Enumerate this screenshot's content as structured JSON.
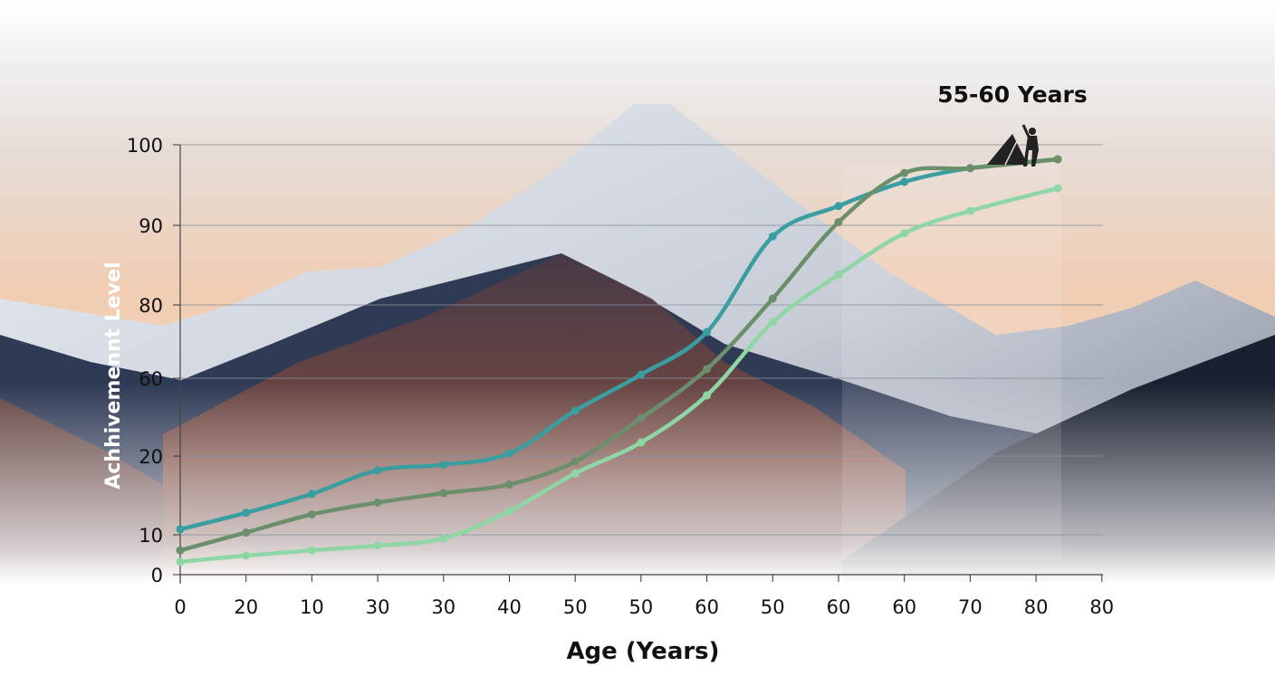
{
  "chart_data": {
    "type": "line",
    "title": "55-60 Years",
    "xlabel": "Age (Years)",
    "ylabel": "Achhivemennt Level",
    "x_tick_labels": [
      "0",
      "20",
      "10",
      "30",
      "30",
      "40",
      "50",
      "50",
      "60",
      "50",
      "60",
      "60",
      "70",
      "80",
      "80"
    ],
    "y_tick_labels": [
      "0",
      "10",
      "20",
      "60",
      "80",
      "90",
      "100"
    ],
    "grid": true,
    "x_positions": [
      0,
      1,
      2,
      3,
      4,
      5,
      6,
      7,
      8,
      9,
      10,
      11,
      12,
      13.33
    ],
    "series": [
      {
        "color": "#3a9ea0",
        "values": [
          10.7,
          12.8,
          15.2,
          18.2,
          18.9,
          21.4,
          43.3,
          61,
          72.6,
          88.6,
          92.4,
          95.4,
          97.1,
          98.2
        ]
      },
      {
        "color": "#6b8f6a",
        "values": [
          6.1,
          10.3,
          12.6,
          14.1,
          15.3,
          16.4,
          19.3,
          39.5,
          62.5,
          80.8,
          90.4,
          96.5,
          97.1,
          98.2
        ]
      },
      {
        "color": "#8fd6a6",
        "values": [
          3.2,
          4.8,
          6.1,
          7.3,
          9.1,
          13,
          17.8,
          27,
          51.2,
          75.3,
          83.8,
          89,
          91.8,
          94.6
        ]
      }
    ],
    "annotation_icon": "climber-with-tent-icon",
    "background": "mountain-sunset-photo"
  }
}
